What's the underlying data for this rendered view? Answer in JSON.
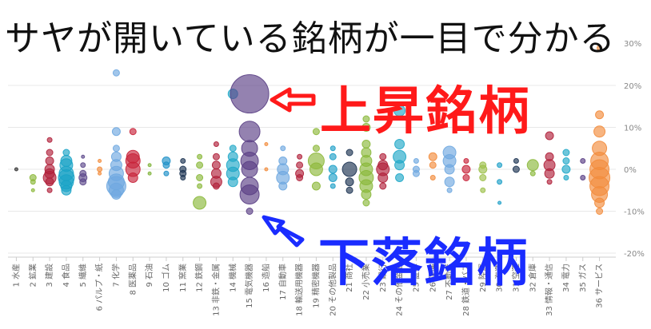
{
  "headline": "サヤが開いている銘柄が一目で分かる",
  "callouts": {
    "up": {
      "text": "上昇銘柄",
      "color": "#ff1a1a"
    },
    "down": {
      "text": "下落銘柄",
      "color": "#1a2cff"
    }
  },
  "chart_data": {
    "type": "scatter",
    "title": "",
    "xlabel": "",
    "ylabel": "",
    "ylim": [
      -20,
      20
    ],
    "y_ticks": [
      "20%",
      "10%",
      "0%",
      "-10%",
      "-20%"
    ],
    "y_top_label": "30%",
    "grid": true,
    "categories": [
      "1 水産",
      "2 鉱業",
      "3 建設",
      "4 食品",
      "5 繊維",
      "6 パルプ・紙",
      "7 化学",
      "8 医薬品",
      "9 石油",
      "10 ゴム",
      "11 窯業",
      "12 鉄鋼",
      "13 非鉄・金属",
      "14 機械",
      "15 電気機器",
      "16 造船",
      "17 自動車",
      "18 輸送用機器",
      "19 精密機器",
      "20 その他製品",
      "21 商社",
      "22 小売業",
      "23 銀行",
      "24 その他金融",
      "25 証券",
      "26 保険",
      "27 不動産",
      "28 鉄道・バス",
      "29 陸運",
      "30 海運",
      "31 空運",
      "32 倉庫",
      "33 情報・通信",
      "34 電力",
      "35 ガス",
      "36 サービス"
    ],
    "colors": [
      "#333333",
      "#8cb83a",
      "#b0203a",
      "#1aa3c6",
      "#5e4a8c",
      "#f28c3c",
      "#6fa8e0",
      "#c8233a",
      "#7fb33a",
      "#1e90c8",
      "#1c3352",
      "#8ab83a",
      "#b0203a",
      "#20a8c8",
      "#5a3f85",
      "#f28c3c",
      "#6fa8e0",
      "#b0203a",
      "#8db83a",
      "#1ea0c8",
      "#1c3352",
      "#8ab83a",
      "#b0203a",
      "#20a8c8",
      "#6fa8e0",
      "#f28c3c",
      "#6fa8e0",
      "#c8233a",
      "#9cc04a",
      "#1ea0c8",
      "#1c3352",
      "#8ab83a",
      "#b0203a",
      "#20a8c8",
      "#5a3f85",
      "#f28c3c"
    ],
    "series": [
      {
        "category": "1 水産",
        "points": [
          [
            0,
            2
          ]
        ]
      },
      {
        "category": "2 鉱業",
        "points": [
          [
            -2,
            4
          ],
          [
            -3,
            3
          ],
          [
            -5,
            2
          ]
        ]
      },
      {
        "category": "3 建設",
        "points": [
          [
            7,
            3
          ],
          [
            4,
            4
          ],
          [
            2,
            5
          ],
          [
            0,
            6
          ],
          [
            -1,
            6
          ],
          [
            -2,
            8
          ],
          [
            -3,
            5
          ],
          [
            -5,
            3
          ]
        ]
      },
      {
        "category": "4 食品",
        "points": [
          [
            4,
            4
          ],
          [
            2,
            7
          ],
          [
            1,
            8
          ],
          [
            -1,
            9
          ],
          [
            -2,
            10
          ],
          [
            -3,
            9
          ],
          [
            -4,
            7
          ],
          [
            -5,
            6
          ]
        ]
      },
      {
        "category": "5 繊維",
        "points": [
          [
            3,
            2
          ],
          [
            1,
            3
          ],
          [
            -1,
            4
          ],
          [
            -2,
            5
          ],
          [
            -3,
            4
          ]
        ]
      },
      {
        "category": "6 パルプ・紙",
        "points": [
          [
            2,
            2
          ],
          [
            0,
            3
          ],
          [
            -1,
            2
          ]
        ]
      },
      {
        "category": "7 化学",
        "points": [
          [
            23,
            4
          ],
          [
            9,
            5
          ],
          [
            5,
            4
          ],
          [
            3,
            6
          ],
          [
            1,
            7
          ],
          [
            -1,
            9
          ],
          [
            -3,
            10
          ],
          [
            -4,
            12
          ],
          [
            -5,
            9
          ],
          [
            -6,
            6
          ]
        ]
      },
      {
        "category": "8 医薬品",
        "points": [
          [
            9,
            4
          ],
          [
            3,
            8
          ],
          [
            2,
            9
          ],
          [
            0,
            9
          ],
          [
            -2,
            6
          ]
        ]
      },
      {
        "category": "9 石油",
        "points": [
          [
            1,
            2
          ],
          [
            -1,
            2
          ]
        ]
      },
      {
        "category": "10 ゴム",
        "points": [
          [
            2,
            5
          ],
          [
            1,
            4
          ],
          [
            -1,
            3
          ]
        ]
      },
      {
        "category": "11 窯業",
        "points": [
          [
            2,
            3
          ],
          [
            0,
            4
          ],
          [
            -1,
            4
          ],
          [
            -2,
            3
          ]
        ]
      },
      {
        "category": "12 鉄鋼",
        "points": [
          [
            3,
            3
          ],
          [
            1,
            4
          ],
          [
            -2,
            4
          ],
          [
            -4,
            3
          ],
          [
            -8,
            8
          ]
        ]
      },
      {
        "category": "13 非鉄・金属",
        "points": [
          [
            6,
            3
          ],
          [
            3,
            4
          ],
          [
            1,
            5
          ],
          [
            -1,
            6
          ],
          [
            -3,
            7
          ],
          [
            -4,
            4
          ]
        ]
      },
      {
        "category": "14 機械",
        "points": [
          [
            18,
            6
          ],
          [
            5,
            4
          ],
          [
            3,
            6
          ],
          [
            1,
            8
          ],
          [
            -1,
            8
          ],
          [
            -3,
            6
          ]
        ]
      },
      {
        "category": "15 電気機器",
        "points": [
          [
            18,
            24
          ],
          [
            9,
            13
          ],
          [
            5,
            10
          ],
          [
            2,
            11
          ],
          [
            0,
            10
          ],
          [
            -4,
            11
          ],
          [
            -6,
            12
          ],
          [
            -10,
            4
          ]
        ]
      },
      {
        "category": "16 造船",
        "points": [
          [
            6,
            2
          ],
          [
            0,
            2
          ]
        ]
      },
      {
        "category": "17 自動車",
        "points": [
          [
            5,
            3
          ],
          [
            2,
            5
          ],
          [
            0,
            7
          ],
          [
            -2,
            8
          ],
          [
            -4,
            5
          ]
        ]
      },
      {
        "category": "18 輸送用機器",
        "points": [
          [
            3,
            3
          ],
          [
            1,
            4
          ],
          [
            -1,
            5
          ],
          [
            -2,
            4
          ]
        ]
      },
      {
        "category": "19 精密機器",
        "points": [
          [
            9,
            4
          ],
          [
            5,
            4
          ],
          [
            2,
            10
          ],
          [
            0,
            8
          ],
          [
            -4,
            5
          ]
        ]
      },
      {
        "category": "20 その他製品",
        "points": [
          [
            5,
            3
          ],
          [
            3,
            4
          ],
          [
            0,
            5
          ],
          [
            -2,
            5
          ],
          [
            -4,
            3
          ]
        ]
      },
      {
        "category": "21 商社",
        "points": [
          [
            4,
            4
          ],
          [
            0,
            9
          ],
          [
            -3,
            5
          ],
          [
            -5,
            4
          ]
        ]
      },
      {
        "category": "22 小売業",
        "points": [
          [
            12,
            4
          ],
          [
            10,
            5
          ],
          [
            6,
            5
          ],
          [
            4,
            6
          ],
          [
            2,
            7
          ],
          [
            0,
            8
          ],
          [
            -2,
            9
          ],
          [
            -4,
            8
          ],
          [
            -6,
            6
          ],
          [
            -8,
            4
          ]
        ]
      },
      {
        "category": "23 銀行",
        "points": [
          [
            3,
            4
          ],
          [
            1,
            6
          ],
          [
            0,
            8
          ],
          [
            -2,
            6
          ],
          [
            -4,
            4
          ]
        ]
      },
      {
        "category": "24 その他金融",
        "points": [
          [
            14,
            7
          ],
          [
            6,
            6
          ],
          [
            3,
            8
          ],
          [
            1,
            6
          ],
          [
            -2,
            5
          ]
        ]
      },
      {
        "category": "25 証券",
        "points": [
          [
            2,
            3
          ],
          [
            0,
            4
          ],
          [
            -1,
            4
          ]
        ]
      },
      {
        "category": "26 保険",
        "points": [
          [
            3,
            5
          ],
          [
            1,
            4
          ],
          [
            -2,
            3
          ]
        ]
      },
      {
        "category": "27 不動産",
        "points": [
          [
            4,
            8
          ],
          [
            2,
            8
          ],
          [
            0,
            6
          ],
          [
            -3,
            6
          ],
          [
            -5,
            3
          ]
        ]
      },
      {
        "category": "28 鉄道・バス",
        "points": [
          [
            2,
            3
          ],
          [
            0,
            5
          ],
          [
            -2,
            4
          ]
        ]
      },
      {
        "category": "29 陸運",
        "points": [
          [
            1,
            4
          ],
          [
            0,
            5
          ],
          [
            -2,
            4
          ],
          [
            -5,
            3
          ]
        ]
      },
      {
        "category": "30 海運",
        "points": [
          [
            1,
            3
          ],
          [
            -3,
            3
          ],
          [
            -8,
            2
          ]
        ]
      },
      {
        "category": "31 空運",
        "points": [
          [
            2,
            3
          ],
          [
            0,
            4
          ]
        ]
      },
      {
        "category": "32 倉庫",
        "points": [
          [
            1,
            7
          ],
          [
            -1,
            3
          ]
        ]
      },
      {
        "category": "33 情報・通信",
        "points": [
          [
            8,
            5
          ],
          [
            3,
            5
          ],
          [
            1,
            7
          ],
          [
            -1,
            6
          ],
          [
            -3,
            3
          ]
        ]
      },
      {
        "category": "34 電力",
        "points": [
          [
            4,
            4
          ],
          [
            2,
            4
          ],
          [
            0,
            5
          ],
          [
            -2,
            3
          ]
        ]
      },
      {
        "category": "35 ガス",
        "points": [
          [
            2,
            3
          ],
          [
            -2,
            3
          ]
        ]
      },
      {
        "category": "36 サービス",
        "points": [
          [
            29,
            3
          ],
          [
            13,
            5
          ],
          [
            9,
            7
          ],
          [
            5,
            9
          ],
          [
            2,
            11
          ],
          [
            0,
            12
          ],
          [
            -2,
            13
          ],
          [
            -4,
            12
          ],
          [
            -6,
            10
          ],
          [
            -8,
            6
          ],
          [
            -10,
            4
          ]
        ]
      }
    ]
  }
}
